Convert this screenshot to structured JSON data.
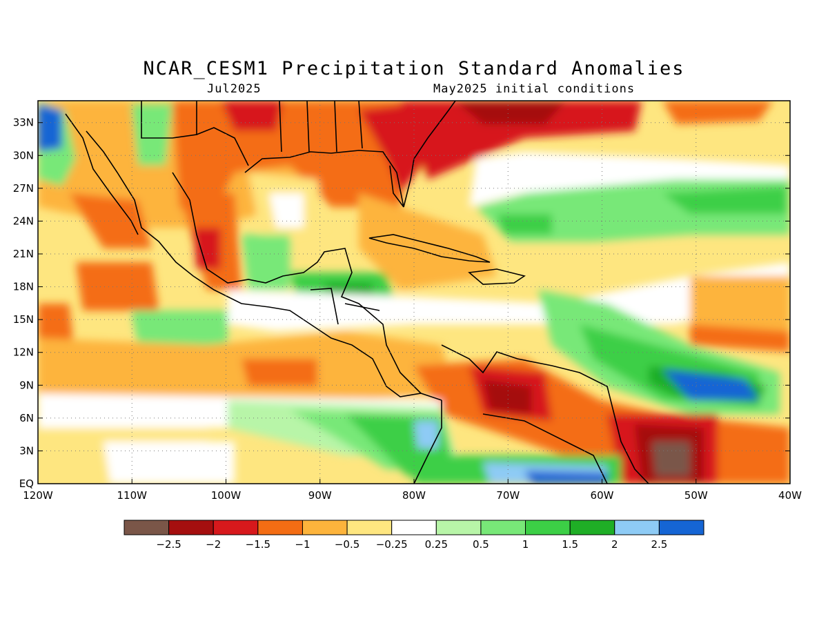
{
  "title": "NCAR_CESM1 Precipitation Standard Anomalies",
  "subtitle_left": "Jul2025",
  "subtitle_right": "May2025 initial conditions",
  "lat_labels": [
    "33N",
    "30N",
    "27N",
    "24N",
    "21N",
    "18N",
    "15N",
    "12N",
    "9N",
    "6N",
    "3N",
    "EQ"
  ],
  "lat_values": [
    33,
    30,
    27,
    24,
    21,
    18,
    15,
    12,
    9,
    6,
    3,
    0
  ],
  "lon_labels": [
    "120W",
    "110W",
    "100W",
    "90W",
    "80W",
    "70W",
    "60W",
    "50W",
    "40W"
  ],
  "lon_values": [
    -120,
    -110,
    -100,
    -90,
    -80,
    -70,
    -60,
    -50,
    -40
  ],
  "map_extent": {
    "lon_min": -120,
    "lon_max": -40,
    "lat_min": 0,
    "lat_max": 35
  },
  "colorbar": {
    "colors": [
      "#7a5648",
      "#a50f0f",
      "#d7191c",
      "#f46d14",
      "#fdb43c",
      "#fee680",
      "#ffffff",
      "#b8f5a8",
      "#78e878",
      "#3ccf46",
      "#1fae26",
      "#8ecbf5",
      "#1565d4"
    ],
    "labels": [
      "-2.5",
      "-2",
      "-1.5",
      "-1",
      "-0.5",
      "-0.25",
      "0.25",
      "0.5",
      "1",
      "1.5",
      "2",
      "2.5"
    ]
  },
  "regions": [
    {
      "name": "anomaly-gulf-coast-deficit",
      "color": "#f46d14",
      "lon": -88,
      "lat": 31
    },
    {
      "name": "anomaly-us-southeast-deficit",
      "color": "#d7191c",
      "lon": -82,
      "lat": 32
    },
    {
      "name": "anomaly-atlantic-north-deficit",
      "color": "#a50f0f",
      "lon": -69,
      "lat": 34
    },
    {
      "name": "anomaly-baja-deficit",
      "color": "#f46d14",
      "lon": -112,
      "lat": 23
    },
    {
      "name": "anomaly-mexico-deficit",
      "color": "#d7191c",
      "lon": -102,
      "lat": 21
    },
    {
      "name": "anomaly-east-pacific-deficit",
      "color": "#f46d14",
      "lon": -110,
      "lat": 17
    },
    {
      "name": "anomaly-bay-campeche-wet",
      "color": "#3ccf46",
      "lon": -93,
      "lat": 20
    },
    {
      "name": "anomaly-central-america-wet",
      "color": "#1fae26",
      "lon": -87,
      "lat": 16
    },
    {
      "name": "anomaly-subtropical-atlantic-wet",
      "color": "#3ccf46",
      "lon": -58,
      "lat": 24
    },
    {
      "name": "anomaly-venezuela-deficit",
      "color": "#a50f0f",
      "lon": -70,
      "lat": 8
    },
    {
      "name": "anomaly-guianas-strong-deficit",
      "color": "#7a5648",
      "lon": -53,
      "lat": 2
    },
    {
      "name": "anomaly-tropical-atlantic-wet",
      "color": "#1565d4",
      "lon": -48,
      "lat": 8.5
    },
    {
      "name": "anomaly-eastern-pacific-itcz-wet",
      "color": "#3ccf46",
      "lon": -85,
      "lat": 5
    },
    {
      "name": "anomaly-amazon-wet",
      "color": "#1565d4",
      "lon": -67,
      "lat": 1
    },
    {
      "name": "anomaly-gulf-mexico-dry",
      "color": "#fee680",
      "lon": -92,
      "lat": 25
    },
    {
      "name": "anomaly-caribbean-neutral",
      "color": "#ffffff",
      "lon": -76,
      "lat": 16
    }
  ]
}
